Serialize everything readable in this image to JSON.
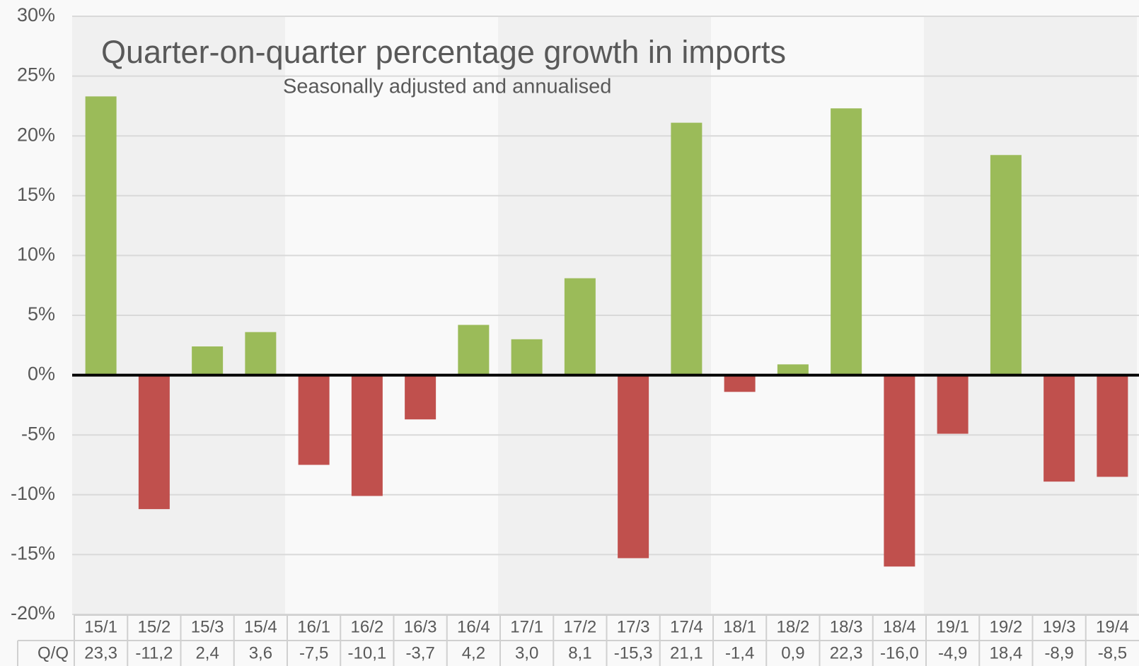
{
  "chart_data": {
    "type": "bar",
    "title": "Quarter-on-quarter percentage growth in imports",
    "subtitle": "Seasonally adjusted and annualised",
    "categories": [
      "15/1",
      "15/2",
      "15/3",
      "15/4",
      "16/1",
      "16/2",
      "16/3",
      "16/4",
      "17/1",
      "17/2",
      "17/3",
      "17/4",
      "18/1",
      "18/2",
      "18/3",
      "18/4",
      "19/1",
      "19/2",
      "19/3",
      "19/4"
    ],
    "values": [
      23.3,
      -11.2,
      2.4,
      3.6,
      -7.5,
      -10.1,
      -3.7,
      4.2,
      3.0,
      8.1,
      -15.3,
      21.1,
      -1.4,
      0.9,
      22.3,
      -16.0,
      -4.9,
      18.4,
      -8.9,
      -8.5
    ],
    "value_labels": [
      "23,3",
      "-11,2",
      "2,4",
      "3,6",
      "-7,5",
      "-10,1",
      "-3,7",
      "4,2",
      "3,0",
      "8,1",
      "-15,3",
      "21,1",
      "-1,4",
      "0,9",
      "22,3",
      "-16,0",
      "-4,9",
      "18,4",
      "-8,9",
      "-8,5"
    ],
    "table_row_label": "Q/Q",
    "positive_color": "#9bbb59",
    "negative_color": "#c0504d",
    "ylim": [
      -20,
      30
    ],
    "yticks": [
      {
        "value": -20,
        "label": "-20%"
      },
      {
        "value": -15,
        "label": "-15%"
      },
      {
        "value": -10,
        "label": "-10%"
      },
      {
        "value": -5,
        "label": "-5%"
      },
      {
        "value": 0,
        "label": "0%"
      },
      {
        "value": 5,
        "label": "5%"
      },
      {
        "value": 10,
        "label": "10%"
      },
      {
        "value": 15,
        "label": "15%"
      },
      {
        "value": 20,
        "label": "20%"
      },
      {
        "value": 25,
        "label": "25%"
      },
      {
        "value": 30,
        "label": "30%"
      }
    ],
    "grid": true
  }
}
